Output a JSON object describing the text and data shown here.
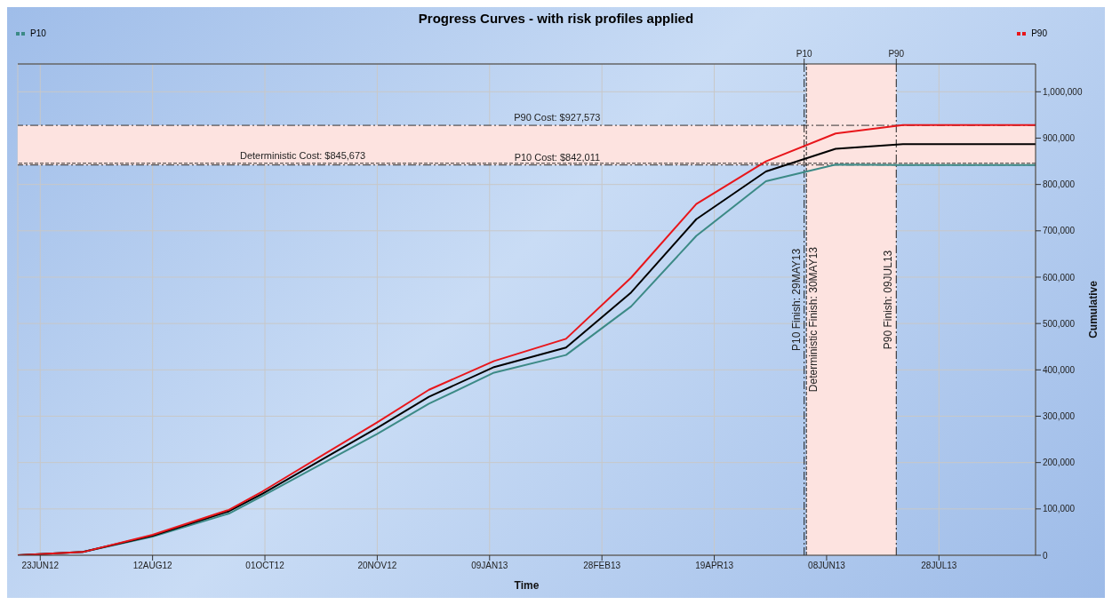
{
  "chart_data": {
    "type": "line",
    "title": "Progress Curves - with risk profiles applied",
    "xlabel": "Time",
    "ylabel": "Cumulative",
    "xlim": [
      "2012-06-13",
      "2013-09-09"
    ],
    "ylim": [
      0,
      1060000
    ],
    "xticks": [
      {
        "value": "2012-06-23",
        "label": "23JUN12"
      },
      {
        "value": "2012-08-12",
        "label": "12AUG12"
      },
      {
        "value": "2012-10-01",
        "label": "01OCT12"
      },
      {
        "value": "2012-11-20",
        "label": "20NOV12"
      },
      {
        "value": "2013-01-09",
        "label": "09JAN13"
      },
      {
        "value": "2013-02-28",
        "label": "28FEB13"
      },
      {
        "value": "2013-04-19",
        "label": "19APR13"
      },
      {
        "value": "2013-06-08",
        "label": "08JUN13"
      },
      {
        "value": "2013-07-28",
        "label": "28JUL13"
      }
    ],
    "yticks": [
      0,
      {
        "value": 100000,
        "label": "100,000"
      },
      {
        "value": 200000,
        "label": "200,000"
      },
      {
        "value": 300000,
        "label": "300,000"
      },
      {
        "value": 400000,
        "label": "400,000"
      },
      {
        "value": 500000,
        "label": "500,000"
      },
      {
        "value": 600000,
        "label": "600,000"
      },
      {
        "value": 700000,
        "label": "700,000"
      },
      {
        "value": 800000,
        "label": "800,000"
      },
      {
        "value": 900000,
        "label": "900,000"
      },
      {
        "value": 1000000,
        "label": "1,000,000"
      }
    ],
    "x": [
      "2012-06-13",
      "2012-07-12",
      "2012-08-12",
      "2012-09-15",
      "2012-09-30",
      "2012-11-20",
      "2012-12-13",
      "2013-01-11",
      "2013-02-12",
      "2013-03-13",
      "2013-04-11",
      "2013-05-12",
      "2013-06-12",
      "2013-07-12",
      "2013-09-09"
    ],
    "series": [
      {
        "name": "P10",
        "color": "#3c8a86",
        "values": [
          0,
          7000,
          40000,
          90000,
          128000,
          262000,
          327000,
          394000,
          432000,
          537000,
          689000,
          807000,
          843000,
          842000,
          842000
        ]
      },
      {
        "color": "#000000",
        "values": [
          0,
          7000,
          42000,
          95000,
          133000,
          275000,
          342000,
          406000,
          448000,
          567000,
          725000,
          828000,
          877000,
          887000,
          887000
        ]
      },
      {
        "name": "P90",
        "color": "#e8161b",
        "values": [
          0,
          7000,
          44000,
          98000,
          138000,
          287000,
          357000,
          419000,
          467000,
          599000,
          758000,
          850000,
          910000,
          928000,
          928000
        ]
      }
    ],
    "bands": [
      {
        "axis": "y",
        "from": 842011,
        "to": 927573,
        "color": "#fde3e0"
      },
      {
        "axis": "x",
        "from": "2013-05-30",
        "to": "2013-07-09",
        "color": "#fde3e0"
      }
    ],
    "ref_lines": [
      {
        "axis": "y",
        "value": 927573,
        "label": "P90 Cost: $927,573",
        "line_style": "dashed"
      },
      {
        "axis": "y",
        "value": 845673,
        "label": "Deterministic Cost: $845,673",
        "line_style": "dotted"
      },
      {
        "axis": "y",
        "value": 842011,
        "label": "P10 Cost: $842,011",
        "line_style": "dashed"
      },
      {
        "axis": "x",
        "value": "2013-05-29",
        "label": "P10 Finish: 29MAY13",
        "line_style": "dashed"
      },
      {
        "axis": "x",
        "value": "2013-05-30",
        "label": "Deterministic Finish: 30MAY13",
        "line_style": "dotted"
      },
      {
        "axis": "x",
        "value": "2013-07-09",
        "label": "P90 Finish: 09JUL13",
        "line_style": "dashed"
      }
    ],
    "annotations": [
      "P10",
      "P90"
    ],
    "grid": true,
    "legend": "top",
    "marker": "none",
    "line_style": "solid"
  }
}
